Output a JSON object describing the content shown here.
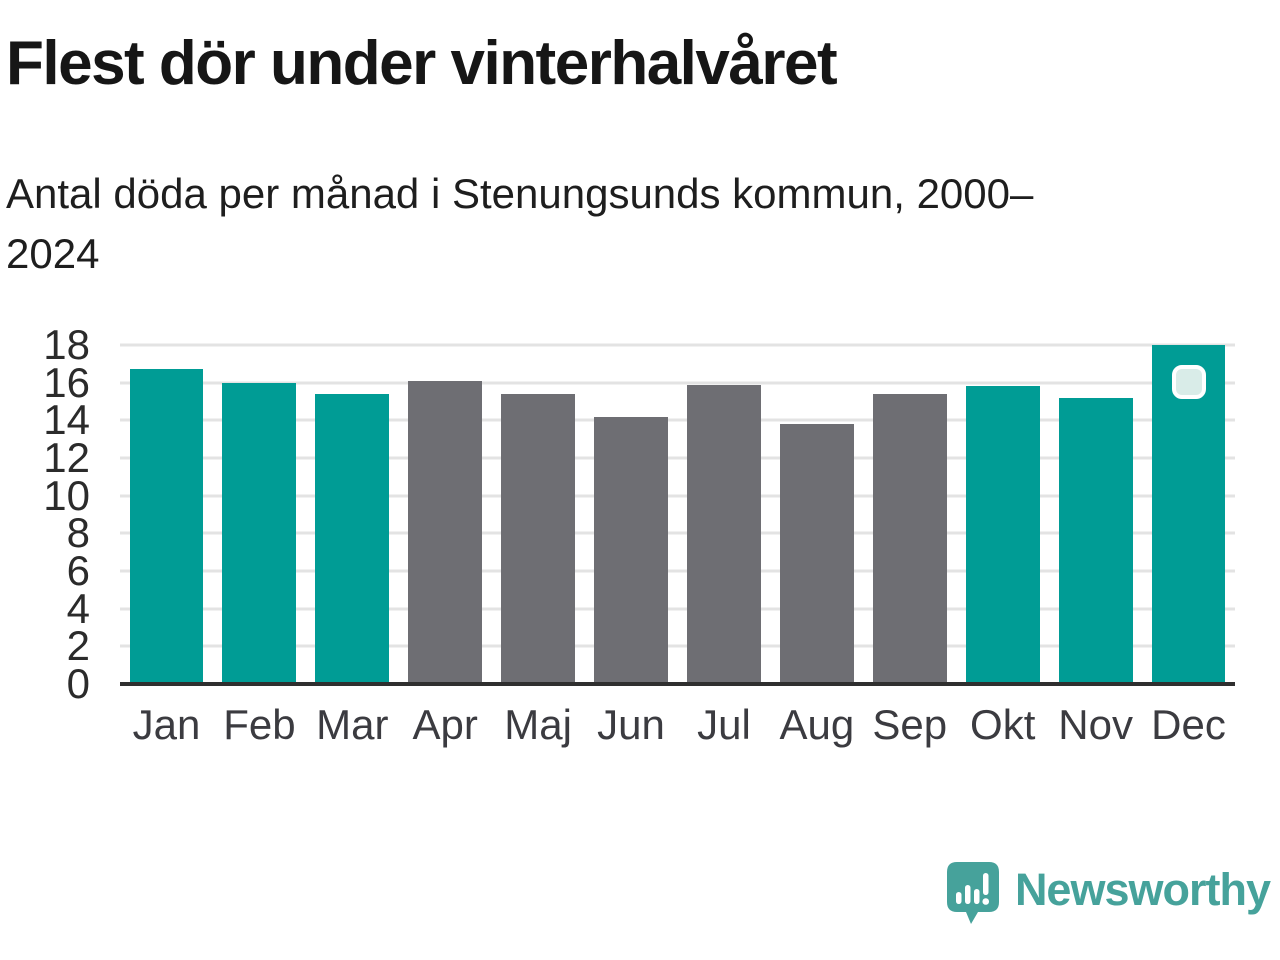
{
  "header": {
    "title": "Flest dör under vinterhalvåret",
    "subtitle": "Antal döda per månad i Stenungsunds kommun, 2000–2024"
  },
  "chart_data": {
    "type": "bar",
    "title": "Flest dör under vinterhalvåret",
    "subtitle": "Antal döda per månad i Stenungsunds kommun, 2000–2024",
    "categories": [
      "Jan",
      "Feb",
      "Mar",
      "Apr",
      "Maj",
      "Jun",
      "Jul",
      "Aug",
      "Sep",
      "Okt",
      "Nov",
      "Dec"
    ],
    "values": [
      16.7,
      16.0,
      15.4,
      16.1,
      15.4,
      14.2,
      15.9,
      13.8,
      15.4,
      15.8,
      15.2,
      18.0
    ],
    "bar_colors": [
      "teal",
      "teal",
      "teal",
      "gray",
      "gray",
      "gray",
      "gray",
      "gray",
      "gray",
      "teal",
      "teal",
      "teal"
    ],
    "highlight_index": 11,
    "y_ticks": [
      0,
      2,
      4,
      6,
      8,
      10,
      12,
      14,
      16,
      18
    ],
    "ylim": [
      0,
      18
    ],
    "xlabel": "",
    "ylabel": "",
    "grid": "horizontal",
    "legend": null
  },
  "colors": {
    "teal": "#009C95",
    "gray": "#6E6E73",
    "grid": "#E3E3E3",
    "axis": "#2F2F2F",
    "badge_fill": "#D9ECE8",
    "badge_border": "#FFFFFF",
    "logo": "#46A29B"
  },
  "footer": {
    "brand": "Newsworthy"
  }
}
